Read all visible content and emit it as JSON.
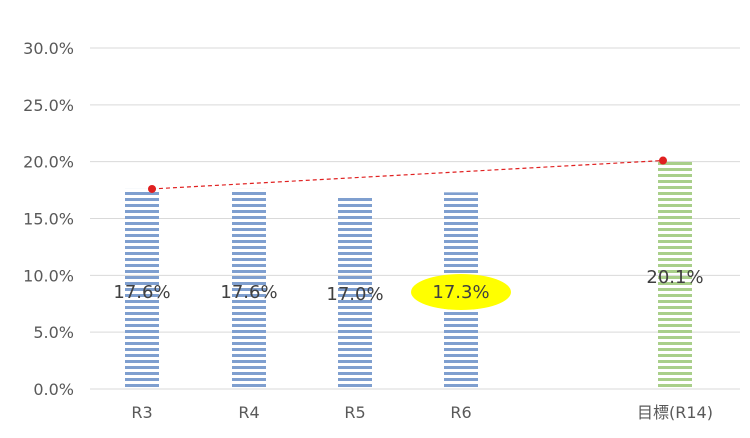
{
  "chart_data": {
    "type": "bar",
    "categories": [
      "R3",
      "R4",
      "R5",
      "R6",
      "目標(R14)"
    ],
    "values": [
      17.6,
      17.6,
      17.0,
      17.3,
      20.1
    ],
    "value_labels": [
      "17.6%",
      "17.6%",
      "17.0%",
      "17.3%",
      "20.1%"
    ],
    "y_ticks": [
      "0.0%",
      "5.0%",
      "10.0%",
      "15.0%",
      "20.0%",
      "25.0%",
      "30.0%"
    ],
    "ylim": [
      0,
      30
    ],
    "grid": true,
    "legend": "none",
    "highlighted_category": "R6",
    "trend_line": {
      "from_category": "R3",
      "to_category": "目標(R14)",
      "style": "dashed"
    },
    "colors": {
      "bar_actual": "#7f9fcf",
      "bar_target": "#a9cf8a",
      "trend_line": "#e02020",
      "highlight": "#ffff00",
      "grid": "#d9d9d9"
    }
  }
}
